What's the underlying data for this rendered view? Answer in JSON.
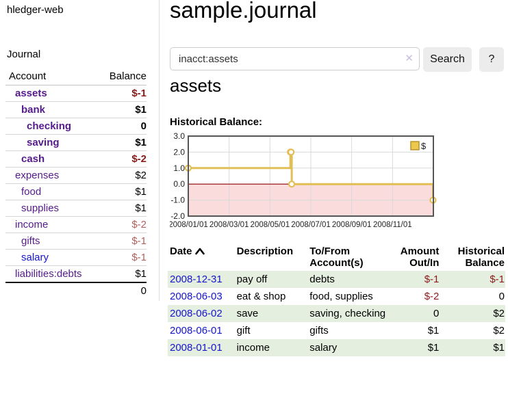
{
  "colors": {
    "purple": "#551a8b",
    "blue": "#1414cc",
    "neg_strong": "#8b1a1a",
    "neg_soft": "#b35f5f",
    "black": "#000000",
    "row_green": "#e4efdf",
    "chart_line": "#e2bf56",
    "chart_marker_fill": "#ffffff",
    "legend_fill": "#ecc84f",
    "legend_border": "#b8922c",
    "negative_region": "#fbdcdc",
    "zero_line": "#8b0000",
    "grid": "#d9d9d9",
    "plot_border": "#555555"
  },
  "app": {
    "title": "hledger-web"
  },
  "sidebar": {
    "journal_label": "Journal",
    "table": {
      "account_header": "Account",
      "balance_header": "Balance"
    },
    "accounts": [
      {
        "name": "assets",
        "balance": "$-1",
        "level": 1,
        "bold": true,
        "name_color": "purple",
        "balance_color": "neg_strong"
      },
      {
        "name": "bank",
        "balance": "$1",
        "level": 2,
        "bold": true,
        "name_color": "purple",
        "balance_color": "black"
      },
      {
        "name": "checking",
        "balance": "0",
        "level": 3,
        "bold": true,
        "name_color": "purple",
        "balance_color": "black"
      },
      {
        "name": "saving",
        "balance": "$1",
        "level": 3,
        "bold": true,
        "name_color": "purple",
        "balance_color": "black"
      },
      {
        "name": "cash",
        "balance": "$-2",
        "level": 2,
        "bold": true,
        "name_color": "purple",
        "balance_color": "neg_strong"
      },
      {
        "name": "expenses",
        "balance": "$2",
        "level": 1,
        "bold": false,
        "name_color": "purple",
        "balance_color": "black"
      },
      {
        "name": "food",
        "balance": "$1",
        "level": 2,
        "bold": false,
        "name_color": "purple",
        "balance_color": "black"
      },
      {
        "name": "supplies",
        "balance": "$1",
        "level": 2,
        "bold": false,
        "name_color": "purple",
        "balance_color": "black"
      },
      {
        "name": "income",
        "balance": "$-2",
        "level": 1,
        "bold": false,
        "name_color": "purple",
        "balance_color": "neg_soft"
      },
      {
        "name": "gifts",
        "balance": "$-1",
        "level": 2,
        "bold": false,
        "name_color": "purple",
        "balance_color": "neg_soft"
      },
      {
        "name": "salary",
        "balance": "$-1",
        "level": 2,
        "bold": false,
        "name_color": "blue",
        "balance_color": "neg_soft"
      },
      {
        "name": "liabilities:debts",
        "balance": "$1",
        "level": 1,
        "bold": false,
        "name_color": "purple",
        "balance_color": "black"
      }
    ],
    "total": "0"
  },
  "main": {
    "title": "sample.journal",
    "search": {
      "value": "inacct:assets",
      "clear_glyph": "✕",
      "button_label": "Search",
      "help_label": "?"
    },
    "heading": "assets"
  },
  "register": {
    "headers": {
      "date": "Date",
      "description": "Description",
      "accounts": "To/From Account(s)",
      "amount": "Amount Out/In",
      "balance": "Historical Balance"
    },
    "rows": [
      {
        "date": "2008-12-31",
        "description": "pay off",
        "accounts": "debts",
        "amount": "$-1",
        "amount_color": "neg_strong",
        "balance": "$-1",
        "balance_color": "neg_strong"
      },
      {
        "date": "2008-06-03",
        "description": "eat & shop",
        "accounts": "food, supplies",
        "amount": "$-2",
        "amount_color": "neg_strong",
        "balance": "0",
        "balance_color": "black"
      },
      {
        "date": "2008-06-02",
        "description": "save",
        "accounts": "saving, checking",
        "amount": "0",
        "amount_color": "black",
        "balance": "$2",
        "balance_color": "black"
      },
      {
        "date": "2008-06-01",
        "description": "gift",
        "accounts": "gifts",
        "amount": "$1",
        "amount_color": "black",
        "balance": "$2",
        "balance_color": "black"
      },
      {
        "date": "2008-01-01",
        "description": "income",
        "accounts": "salary",
        "amount": "$1",
        "amount_color": "black",
        "balance": "$1",
        "balance_color": "black"
      }
    ]
  },
  "chart_data": {
    "type": "line",
    "title": "Historical Balance:",
    "step": true,
    "series": [
      {
        "name": "$",
        "points": [
          [
            "2008-01-01",
            1
          ],
          [
            "2008-06-01",
            2
          ],
          [
            "2008-06-02",
            2
          ],
          [
            "2008-06-03",
            0
          ],
          [
            "2008-12-31",
            -1
          ]
        ]
      }
    ],
    "x_ticks": [
      "2008/01/01",
      "2008/03/01",
      "2008/05/01",
      "2008/07/01",
      "2008/09/01",
      "2008/11/01"
    ],
    "y_ticks": [
      "3.0",
      "2.0",
      "1.0",
      "0.0",
      "-1.0",
      "-2.0"
    ],
    "ylim": [
      -2,
      3
    ],
    "grid": true,
    "legend_position": "top-right",
    "negative_region_shaded": true
  }
}
